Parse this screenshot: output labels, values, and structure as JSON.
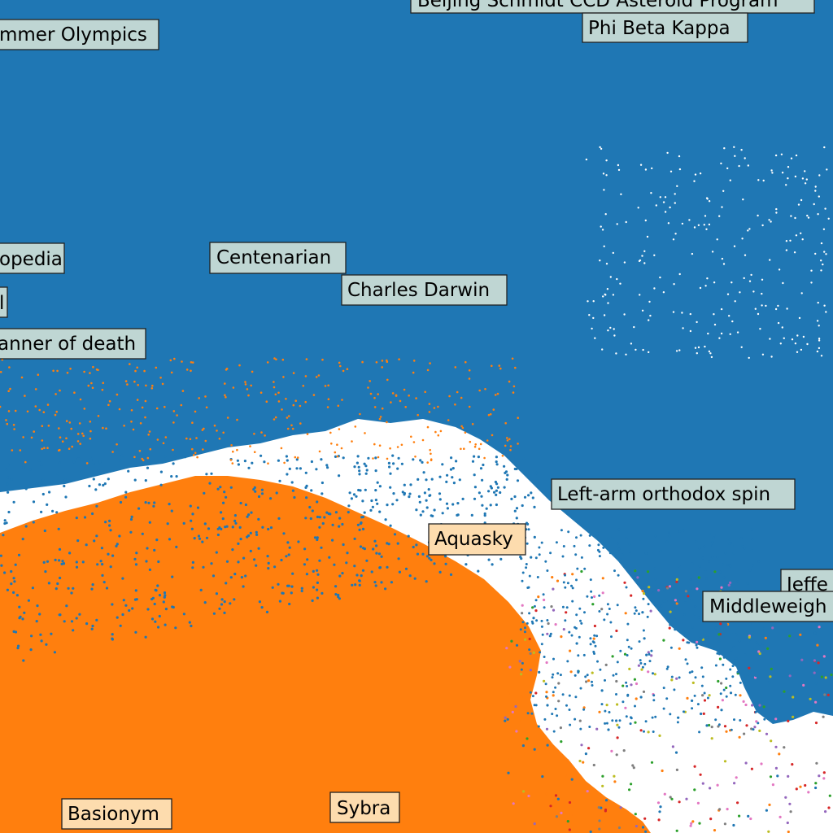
{
  "chart_data": {
    "type": "scatter",
    "title": "",
    "xlabel": "",
    "ylabel": "",
    "grid": false,
    "legend": "none",
    "colors": {
      "background": "#ffffff",
      "blue_cluster": "#1f77b4",
      "orange_cluster": "#ff7f0e",
      "label_blue_fill": "#bfd6d3",
      "label_orange_fill": "#fddcae",
      "sparse_points": [
        "#1f77b4",
        "#ff7f0e",
        "#9467bd",
        "#bcbd22",
        "#7f7f7f",
        "#2ca02c",
        "#d62728",
        "#e377c2"
      ]
    },
    "annotations": [
      {
        "text": "Beijing Schmidt CCD Asteroid Program",
        "cluster": "blue"
      },
      {
        "text": "Phi Beta Kappa",
        "cluster": "blue"
      },
      {
        "text": "mmer Olympics",
        "cluster": "blue"
      },
      {
        "text": "opedia",
        "cluster": "blue"
      },
      {
        "text": "Centenarian",
        "cluster": "blue"
      },
      {
        "text": "Charles Darwin",
        "cluster": "blue"
      },
      {
        "text": "l",
        "cluster": "blue"
      },
      {
        "text": "anner of death",
        "cluster": "blue"
      },
      {
        "text": "Left-arm orthodox spin",
        "cluster": "blue"
      },
      {
        "text": "Aquasky",
        "cluster": "orange"
      },
      {
        "text": "Jeffe",
        "cluster": "blue"
      },
      {
        "text": "Middleweigh",
        "cluster": "blue"
      },
      {
        "text": "Basionym",
        "cluster": "orange"
      },
      {
        "text": "Sybra",
        "cluster": "orange"
      }
    ]
  }
}
